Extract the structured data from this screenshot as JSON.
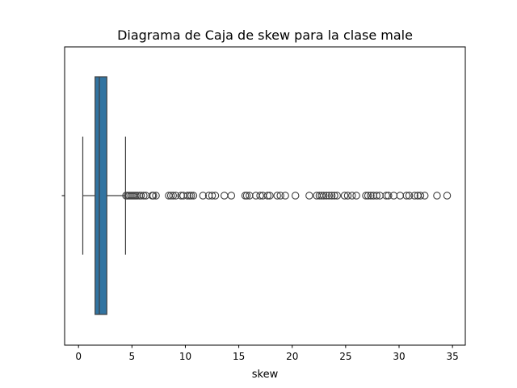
{
  "chart_data": {
    "type": "boxplot",
    "orientation": "horizontal",
    "title": "Diagrama de Caja de skew para la clase male",
    "xlabel": "skew",
    "ylabel": "",
    "xlim": [
      -1.3,
      36.2
    ],
    "xticks": [
      0,
      5,
      10,
      15,
      20,
      25,
      30,
      35
    ],
    "xtick_labels": [
      "0",
      "5",
      "10",
      "15",
      "20",
      "25",
      "30",
      "35"
    ],
    "grid": false,
    "box_color": "#3274a1",
    "series": [
      {
        "whisker_low": 0.4,
        "q1": 1.55,
        "median": 1.95,
        "q3": 2.65,
        "whisker_high": 4.4,
        "outliers": [
          4.45,
          4.6,
          4.75,
          4.9,
          5.05,
          5.2,
          5.35,
          5.5,
          5.7,
          5.85,
          6.1,
          6.3,
          6.9,
          7.0,
          7.25,
          8.45,
          8.65,
          8.85,
          9.1,
          9.6,
          9.8,
          10.2,
          10.4,
          10.55,
          10.75,
          11.65,
          12.2,
          12.5,
          12.8,
          13.65,
          14.3,
          15.6,
          15.75,
          16.0,
          16.6,
          17.0,
          17.25,
          17.7,
          17.9,
          18.6,
          18.9,
          19.35,
          20.3,
          21.6,
          22.3,
          22.55,
          22.75,
          22.95,
          23.2,
          23.45,
          23.7,
          23.95,
          24.2,
          24.9,
          25.2,
          25.6,
          26.0,
          26.9,
          27.1,
          27.35,
          27.6,
          27.9,
          28.2,
          28.8,
          29.0,
          29.5,
          30.1,
          30.7,
          30.95,
          31.45,
          31.75,
          32.0,
          32.4,
          33.55,
          34.5
        ]
      }
    ]
  }
}
